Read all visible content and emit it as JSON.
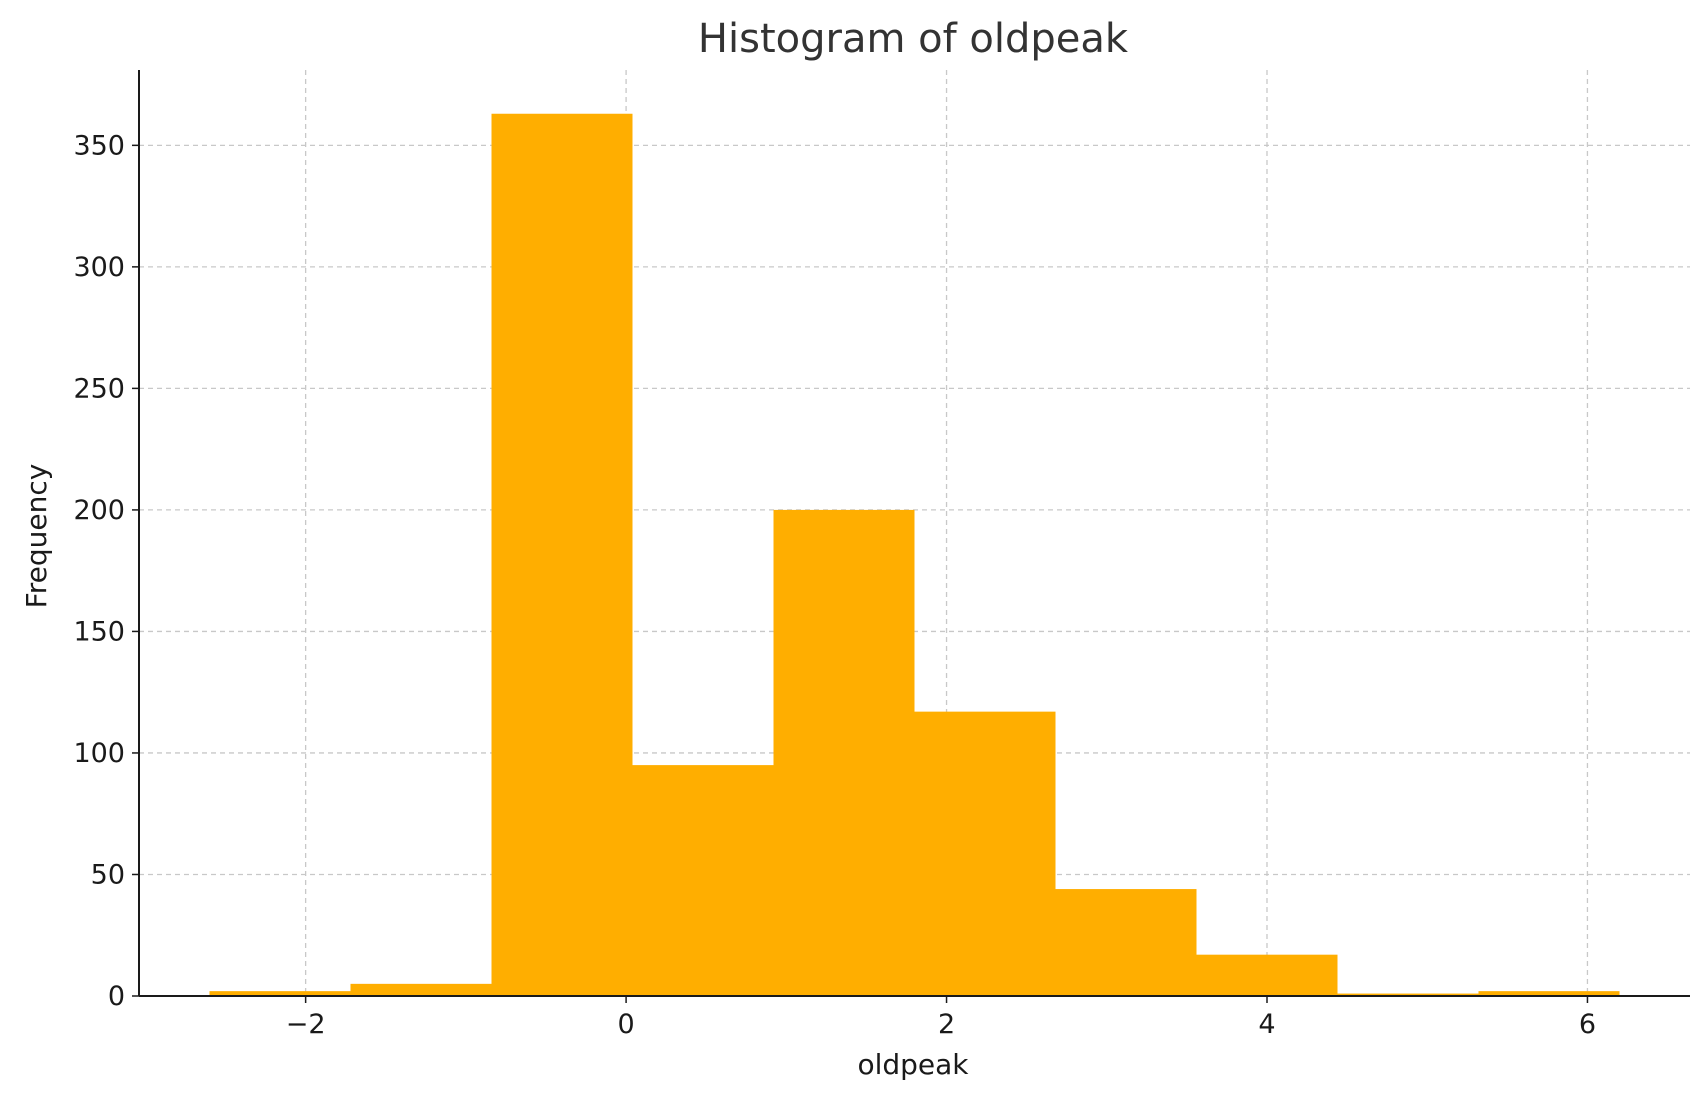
{
  "chart_data": {
    "type": "bar",
    "title": "Histogram of oldpeak",
    "xlabel": "oldpeak",
    "ylabel": "Frequency",
    "bar_color": "#FFAE00",
    "bin_edges": [
      -2.6,
      -1.72,
      -0.84,
      0.04,
      0.92,
      1.8,
      2.68,
      3.56,
      4.44,
      5.32,
      6.2
    ],
    "values": [
      2,
      5,
      363,
      95,
      200,
      117,
      44,
      17,
      1,
      2
    ],
    "xlim": [
      -3.04,
      6.64
    ],
    "ylim": [
      0,
      381
    ],
    "xticks": [
      -2,
      0,
      2,
      4,
      6
    ],
    "xtick_labels": [
      "−2",
      "0",
      "2",
      "4",
      "6"
    ],
    "yticks": [
      0,
      50,
      100,
      150,
      200,
      250,
      300,
      350
    ],
    "ytick_labels": [
      "0",
      "50",
      "100",
      "150",
      "200",
      "250",
      "300",
      "350"
    ],
    "grid": true
  }
}
